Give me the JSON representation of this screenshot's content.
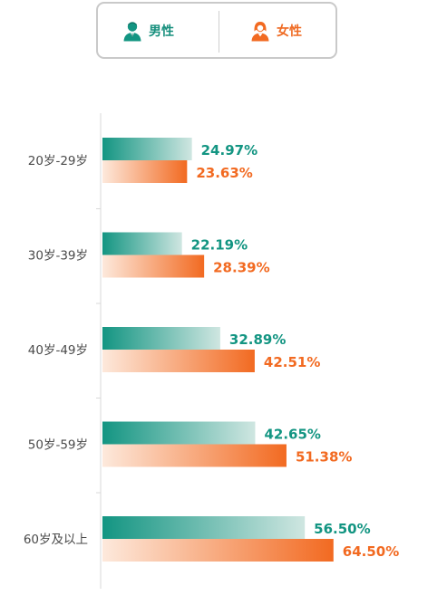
{
  "legend": {
    "male_label": "男性",
    "female_label": "女性",
    "male_icon": "male-person-icon",
    "female_icon": "female-person-icon"
  },
  "colors": {
    "male": "#139582",
    "male_light": "#cfe6e1",
    "female": "#f26a21",
    "female_light": "#fde9dc",
    "axis": "#d9d9d9"
  },
  "chart_data": {
    "type": "bar",
    "orientation": "horizontal",
    "categories": [
      "20岁-29岁",
      "30岁-39岁",
      "40岁-49岁",
      "50岁-59岁",
      "60岁及以上"
    ],
    "series": [
      {
        "name": "男性",
        "values": [
          24.97,
          22.19,
          32.89,
          42.65,
          56.5
        ],
        "labels": [
          "24.97%",
          "22.19%",
          "32.89%",
          "42.65%",
          "56.50%"
        ]
      },
      {
        "name": "女性",
        "values": [
          23.63,
          28.39,
          42.51,
          51.38,
          64.5
        ],
        "labels": [
          "23.63%",
          "28.39%",
          "42.51%",
          "51.38%",
          "64.50%"
        ]
      }
    ],
    "xlim": [
      0,
      100
    ],
    "grid": false,
    "legend_position": "top"
  }
}
